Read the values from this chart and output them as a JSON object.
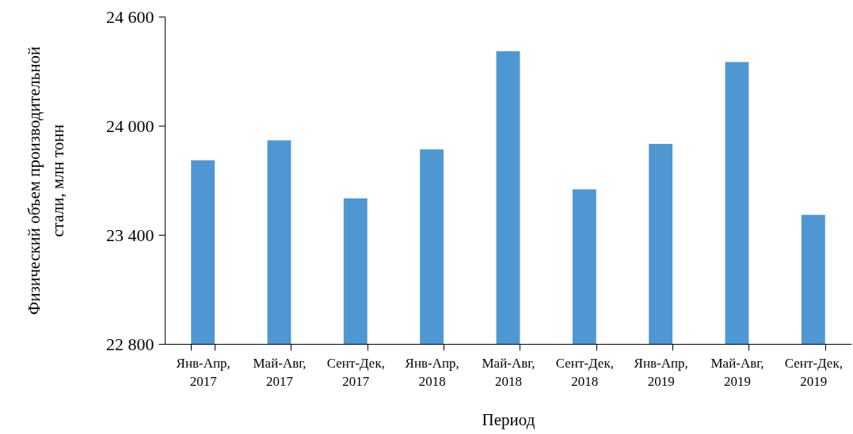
{
  "chart_data": {
    "type": "bar",
    "xlabel": "Период",
    "ylabel": "Физический объем производительной стали, млн тонн",
    "categories": [
      "Янв-Апр, 2017",
      "Май-Авг, 2017",
      "Сент-Дек, 2017",
      "Янв-Апр, 2018",
      "Май-Авг, 2018",
      "Сент-Дек, 2018",
      "Янв-Апр, 2019",
      "Май-Авг, 2019",
      "Сент-Дек, 2019"
    ],
    "values": [
      23810,
      23920,
      23600,
      23870,
      24410,
      23650,
      23900,
      24350,
      23510
    ],
    "color": "#4f97d3",
    "ylim": [
      22800,
      24600
    ],
    "yticks": [
      {
        "value": 22800,
        "label": "22 800"
      },
      {
        "value": 23400,
        "label": "23 400"
      },
      {
        "value": 24000,
        "label": "24 000"
      },
      {
        "value": 24600,
        "label": "24 600"
      }
    ],
    "grid": false
  }
}
